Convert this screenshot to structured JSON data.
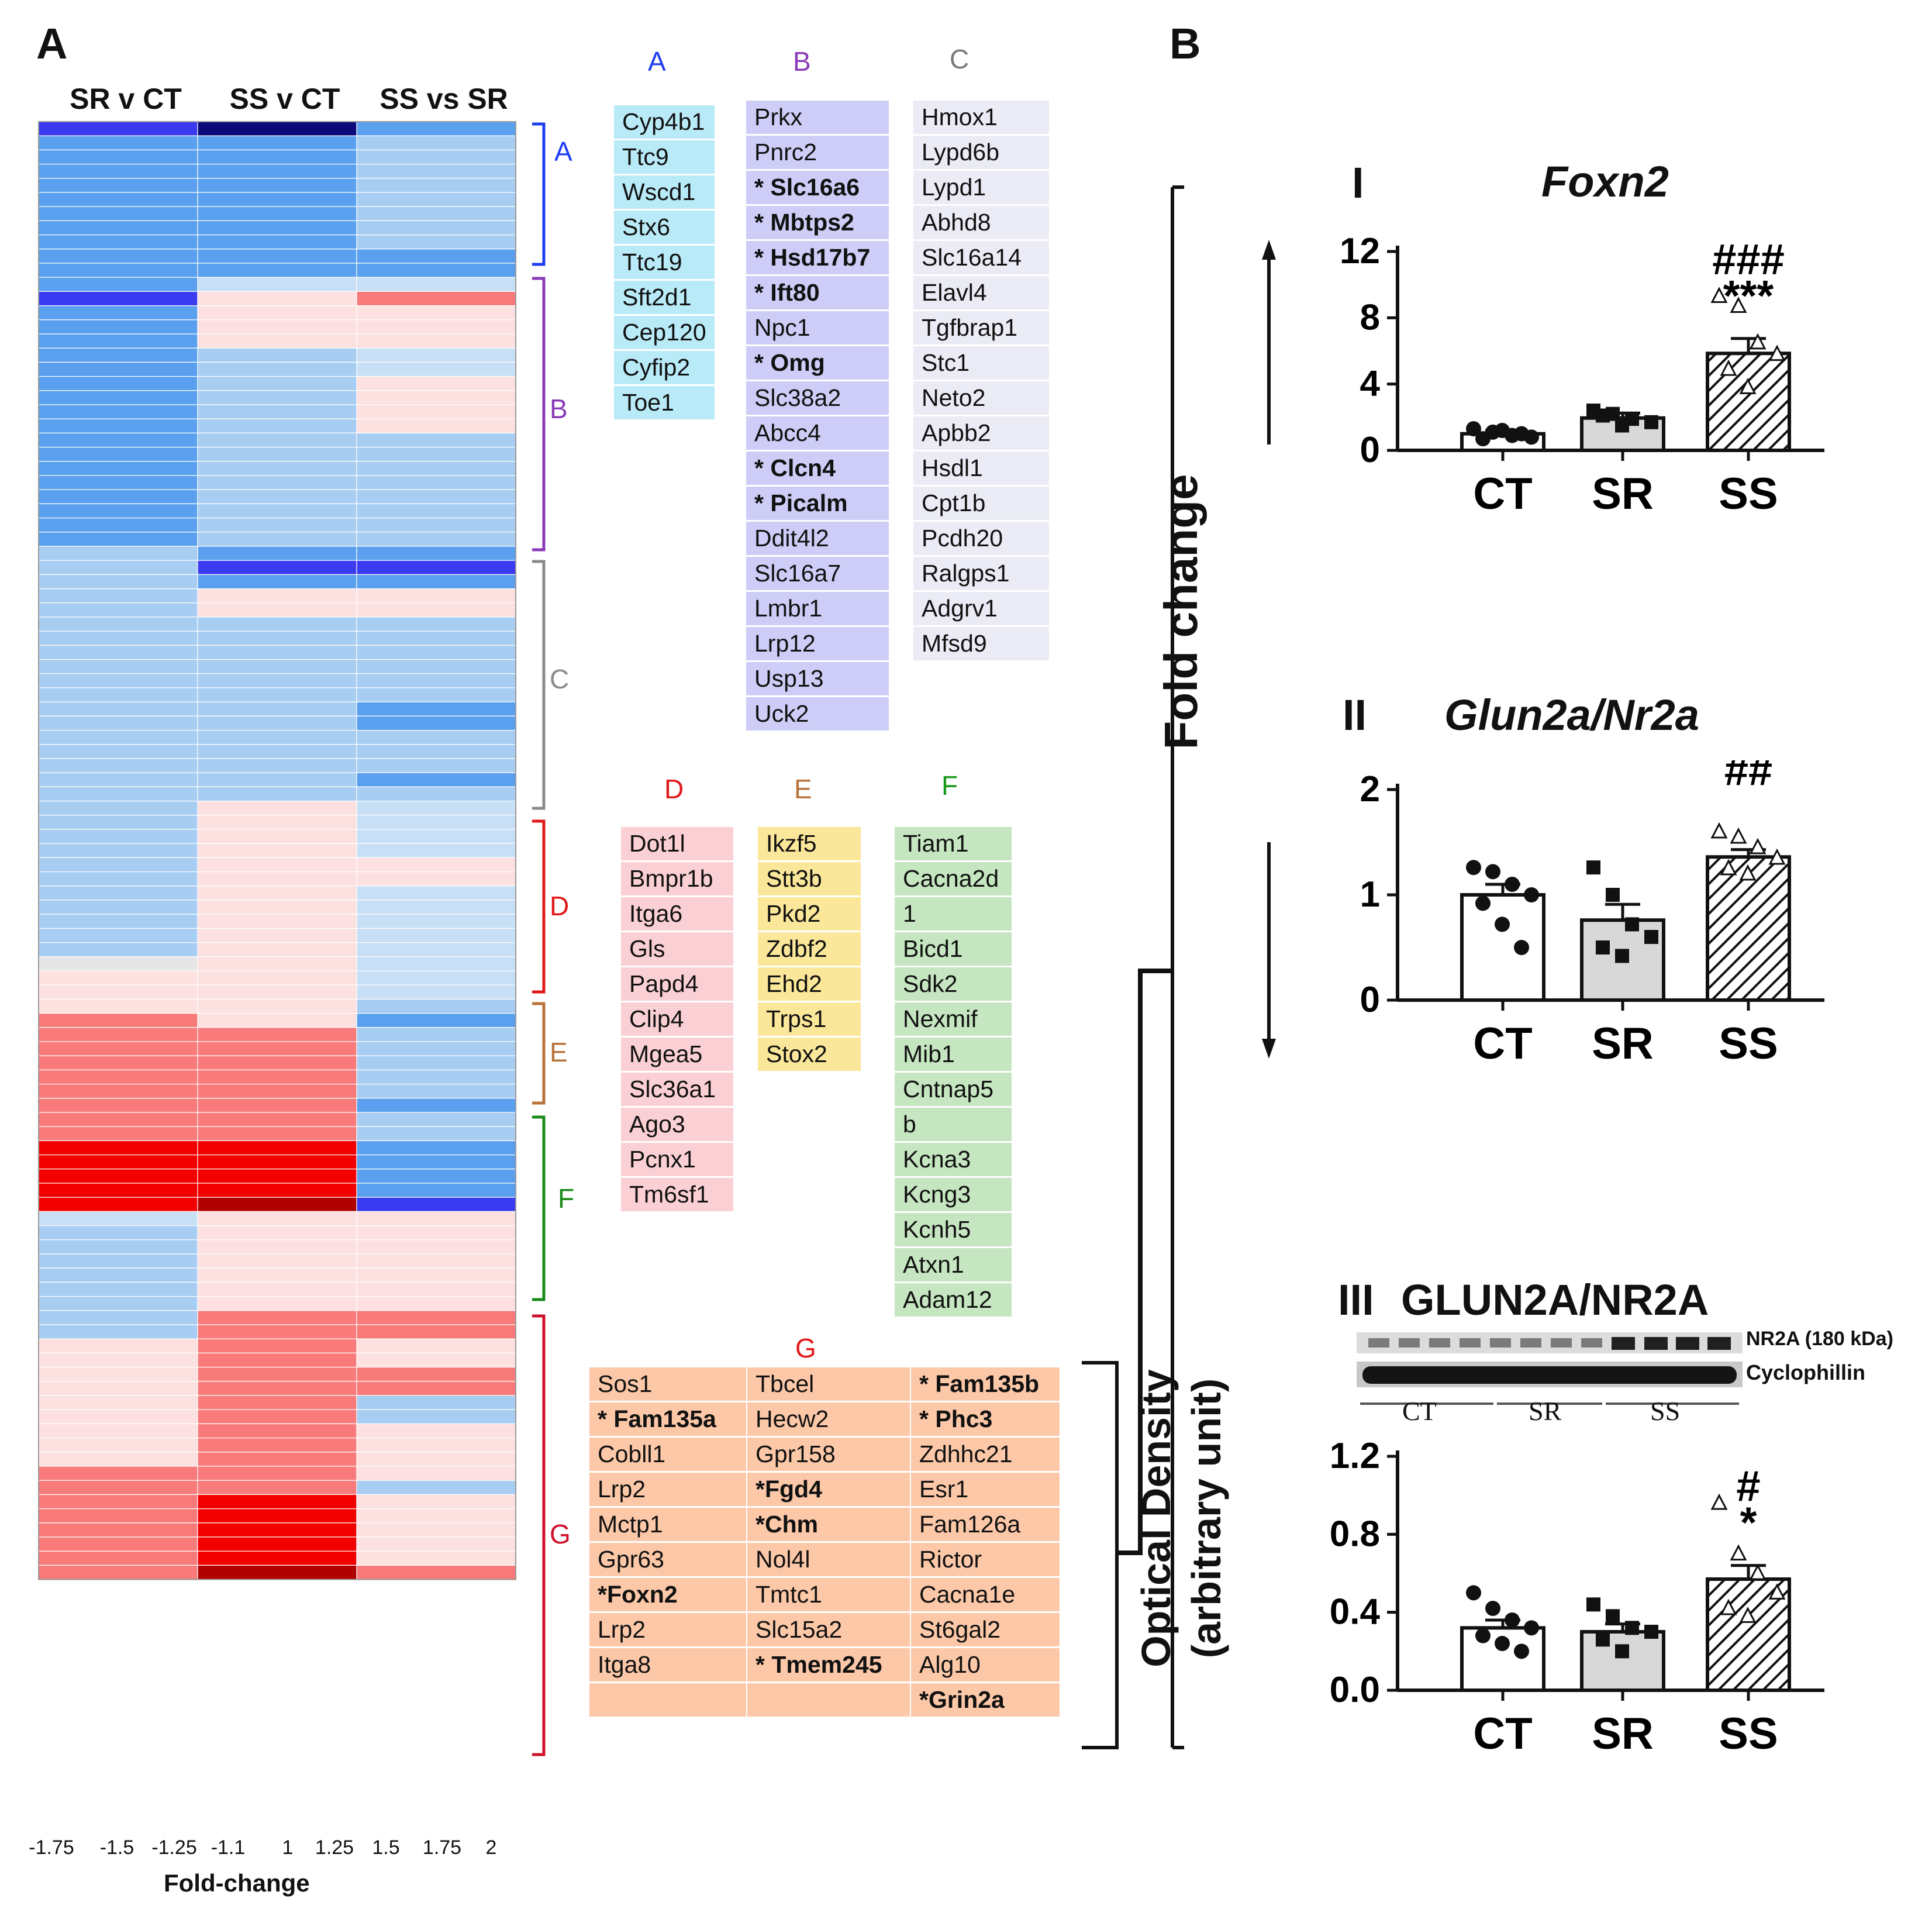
{
  "panel_a": {
    "letter": "A",
    "columns": [
      "SR v CT",
      "SS v CT",
      "SS vs SR"
    ],
    "bracket_labels": [
      {
        "key": "A",
        "color": "#1e3df0"
      },
      {
        "key": "B",
        "color": "#8a3ab8"
      },
      {
        "key": "C",
        "color": "#8a8a8a"
      },
      {
        "key": "D",
        "color": "#e01818"
      },
      {
        "key": "E",
        "color": "#b8733a"
      },
      {
        "key": "F",
        "color": "#1a8a1a"
      },
      {
        "key": "G",
        "color": "#d0102a"
      }
    ],
    "legend": {
      "title": "Fold-change",
      "ticks": [
        "-1.75",
        "-1.5",
        "-1.25",
        "-1.1",
        "1",
        "1.25",
        "1.5",
        "1.75",
        "2"
      ],
      "colors": [
        "#0a0a7a",
        "#1010f0",
        "#5a5af0",
        "#7ab8f0",
        "#c0dcf5",
        "#fde0e0",
        "#f98080",
        "#f80000",
        "#c00000",
        "#a00000"
      ]
    },
    "heatmap_palette": {
      "dark_navy": "#0a0a7a",
      "blue": "#3a3af0",
      "mid_blue": "#5aa0ee",
      "light_blue": "#a8cdf2",
      "pale_blue": "#c8e0f6",
      "pale_red": "#fde0e0",
      "mid_red": "#f87a7a",
      "red": "#f20000",
      "dark_red": "#b00000",
      "grey": "#e6e6e6"
    },
    "gene_groups": {
      "A": {
        "title": "A",
        "title_color": "#1e3df0",
        "fill": "#b9eaf7",
        "genes": [
          {
            "t": "Cyp4b1"
          },
          {
            "t": "Ttc9"
          },
          {
            "t": "Wscd1"
          },
          {
            "t": "Stx6"
          },
          {
            "t": "Ttc19"
          },
          {
            "t": "Sft2d1"
          },
          {
            "t": "Cep120"
          },
          {
            "t": "Cyfip2"
          },
          {
            "t": "Toe1"
          }
        ]
      },
      "B": {
        "title": "B",
        "title_color": "#8a3ab8",
        "fill": "#cdcdf7",
        "genes": [
          {
            "t": "Prkx"
          },
          {
            "t": "Pnrc2"
          },
          {
            "t": "* Slc16a6",
            "b": true
          },
          {
            "t": "* Mbtps2",
            "b": true
          },
          {
            "t": "* Hsd17b7",
            "b": true
          },
          {
            "t": "* Ift80",
            "b": true
          },
          {
            "t": "Npc1"
          },
          {
            "t": "* Omg",
            "b": true
          },
          {
            "t": "Slc38a2"
          },
          {
            "t": "Abcc4"
          },
          {
            "t": "* Clcn4",
            "b": true
          },
          {
            "t": "* Picalm",
            "b": true
          },
          {
            "t": "Ddit4l2"
          },
          {
            "t": "Slc16a7"
          },
          {
            "t": "Lmbr1"
          },
          {
            "t": "Lrp12"
          },
          {
            "t": "Usp13"
          },
          {
            "t": "Uck2"
          }
        ]
      },
      "C": {
        "title": "C",
        "title_color": "#7a7a7a",
        "fill": "#ebebf5",
        "genes": [
          {
            "t": "Hmox1"
          },
          {
            "t": "Lypd6b"
          },
          {
            "t": "Lypd1"
          },
          {
            "t": "Abhd8"
          },
          {
            "t": "Slc16a14"
          },
          {
            "t": "Elavl4"
          },
          {
            "t": "Tgfbrap1"
          },
          {
            "t": "Stc1"
          },
          {
            "t": "Neto2"
          },
          {
            "t": "Apbb2"
          },
          {
            "t": "Hsdl1"
          },
          {
            "t": "Cpt1b"
          },
          {
            "t": "Pcdh20"
          },
          {
            "t": "Ralgps1"
          },
          {
            "t": "Adgrv1"
          },
          {
            "t": "Mfsd9"
          }
        ]
      },
      "D": {
        "title": "D",
        "title_color": "#e01818",
        "fill": "#fbd0d5",
        "genes": [
          {
            "t": "Dot1l"
          },
          {
            "t": "Bmpr1b"
          },
          {
            "t": "Itga6"
          },
          {
            "t": "Gls"
          },
          {
            "t": "Papd4"
          },
          {
            "t": "Clip4"
          },
          {
            "t": "Mgea5"
          },
          {
            "t": "Slc36a1"
          },
          {
            "t": "Ago3"
          },
          {
            "t": "Pcnx1"
          },
          {
            "t": "Tm6sf1"
          }
        ]
      },
      "E": {
        "title": "E",
        "title_color": "#b8733a",
        "fill": "#fbe79a",
        "genes": [
          {
            "t": "Ikzf5"
          },
          {
            "t": "Stt3b"
          },
          {
            "t": "Pkd2"
          },
          {
            "t": "Zdbf2"
          },
          {
            "t": "Ehd2"
          },
          {
            "t": "Trps1"
          },
          {
            "t": "Stox2"
          }
        ]
      },
      "F": {
        "title": "F",
        "title_color": "#1a9a1a",
        "fill": "#c5e6c0",
        "genes": [
          {
            "t": "Tiam1"
          },
          {
            "t": "Cacna2d"
          },
          {
            "t": "1"
          },
          {
            "t": "Bicd1"
          },
          {
            "t": "Sdk2"
          },
          {
            "t": "Nexmif"
          },
          {
            "t": "Mib1"
          },
          {
            "t": "Cntnap5"
          },
          {
            "t": "b"
          },
          {
            "t": "Kcna3"
          },
          {
            "t": "Kcng3"
          },
          {
            "t": "Kcnh5"
          },
          {
            "t": "Atxn1"
          },
          {
            "t": "Adam12"
          }
        ]
      },
      "G": {
        "title": "G",
        "title_color": "#e01818",
        "fill": "#fcc8a8",
        "col1": [
          {
            "t": "Sos1"
          },
          {
            "t": "* Fam135a",
            "b": true
          },
          {
            "t": "Cobll1"
          },
          {
            "t": "Lrp2"
          },
          {
            "t": "Mctp1"
          },
          {
            "t": "Gpr63"
          },
          {
            "t": "*Foxn2",
            "b": true
          },
          {
            "t": "Lrp2"
          },
          {
            "t": "Itga8"
          },
          {
            "t": ""
          }
        ],
        "col2": [
          {
            "t": "Tbcel"
          },
          {
            "t": "Hecw2"
          },
          {
            "t": "Gpr158"
          },
          {
            "t": "*Fgd4",
            "b": true
          },
          {
            "t": "*Chm",
            "b": true
          },
          {
            "t": "Nol4l"
          },
          {
            "t": "Tmtc1"
          },
          {
            "t": "Slc15a2"
          },
          {
            "t": "* Tmem245",
            "b": true
          },
          {
            "t": ""
          }
        ],
        "col3": [
          {
            "t": "* Fam135b",
            "b": true
          },
          {
            "t": "* Phc3",
            "b": true
          },
          {
            "t": "Zdhhc21"
          },
          {
            "t": "Esr1"
          },
          {
            "t": "Fam126a"
          },
          {
            "t": "Rictor"
          },
          {
            "t": "Cacna1e"
          },
          {
            "t": "St6gal2"
          },
          {
            "t": "Alg10"
          },
          {
            "t": "*Grin2a",
            "b": true
          }
        ]
      }
    }
  },
  "panel_b": {
    "letter": "B",
    "fold_change_label": "Fold change",
    "od_label_line1": "Optical Density",
    "od_label_line2": "(arbitrary unit)",
    "western": {
      "band1": "NR2A (180 kDa)",
      "band2": "Cyclophillin",
      "lanes": [
        "CT",
        "SR",
        "SS"
      ]
    }
  },
  "chart_data": [
    {
      "id": "foxn2",
      "type": "bar",
      "roman": "I",
      "title": "Foxn2",
      "categories": [
        "CT",
        "SR",
        "SS"
      ],
      "values": [
        1.0,
        1.95,
        5.85
      ],
      "errors": [
        0.2,
        0.3,
        0.9
      ],
      "ylim": [
        0,
        12
      ],
      "yticks": [
        "0",
        "4",
        "8",
        "12"
      ],
      "significance": {
        "SS": [
          "###",
          "***"
        ]
      },
      "points": {
        "CT": [
          1.3,
          1.1,
          0.9,
          0.8,
          0.7,
          1.2,
          1.0
        ],
        "SR": [
          2.4,
          2.2,
          1.9,
          1.7,
          2.1,
          1.5
        ],
        "SS": [
          9.3,
          8.7,
          6.5,
          5.8,
          4.9,
          3.8
        ]
      }
    },
    {
      "id": "glun2a",
      "type": "bar",
      "roman": "II",
      "title": "Glun2a/Nr2a",
      "categories": [
        "CT",
        "SR",
        "SS"
      ],
      "values": [
        1.0,
        0.76,
        1.36
      ],
      "errors": [
        0.1,
        0.15,
        0.07
      ],
      "ylim": [
        0,
        2
      ],
      "yticks": [
        "0",
        "1",
        "2"
      ],
      "significance": {
        "SS": [
          "##"
        ]
      },
      "points": {
        "CT": [
          1.26,
          1.22,
          1.1,
          1.0,
          0.92,
          0.72,
          0.5
        ],
        "SR": [
          1.26,
          1.0,
          0.72,
          0.6,
          0.5,
          0.42
        ],
        "SS": [
          1.6,
          1.55,
          1.45,
          1.35,
          1.25,
          1.2
        ]
      }
    },
    {
      "id": "glun2a_protein",
      "type": "bar",
      "roman": "III",
      "title": "GLUN2A/NR2A",
      "categories": [
        "CT",
        "SR",
        "SS"
      ],
      "values": [
        0.32,
        0.3,
        0.57
      ],
      "errors": [
        0.04,
        0.04,
        0.07
      ],
      "ylim": [
        0,
        1.2
      ],
      "yticks": [
        "0.0",
        "0.4",
        "0.8",
        "1.2"
      ],
      "significance": {
        "SS": [
          "#",
          "*"
        ]
      },
      "points": {
        "CT": [
          0.5,
          0.42,
          0.36,
          0.32,
          0.28,
          0.24,
          0.2
        ],
        "SR": [
          0.44,
          0.38,
          0.32,
          0.3,
          0.26,
          0.2
        ],
        "SS": [
          0.96,
          0.7,
          0.6,
          0.5,
          0.42,
          0.38
        ]
      }
    }
  ]
}
